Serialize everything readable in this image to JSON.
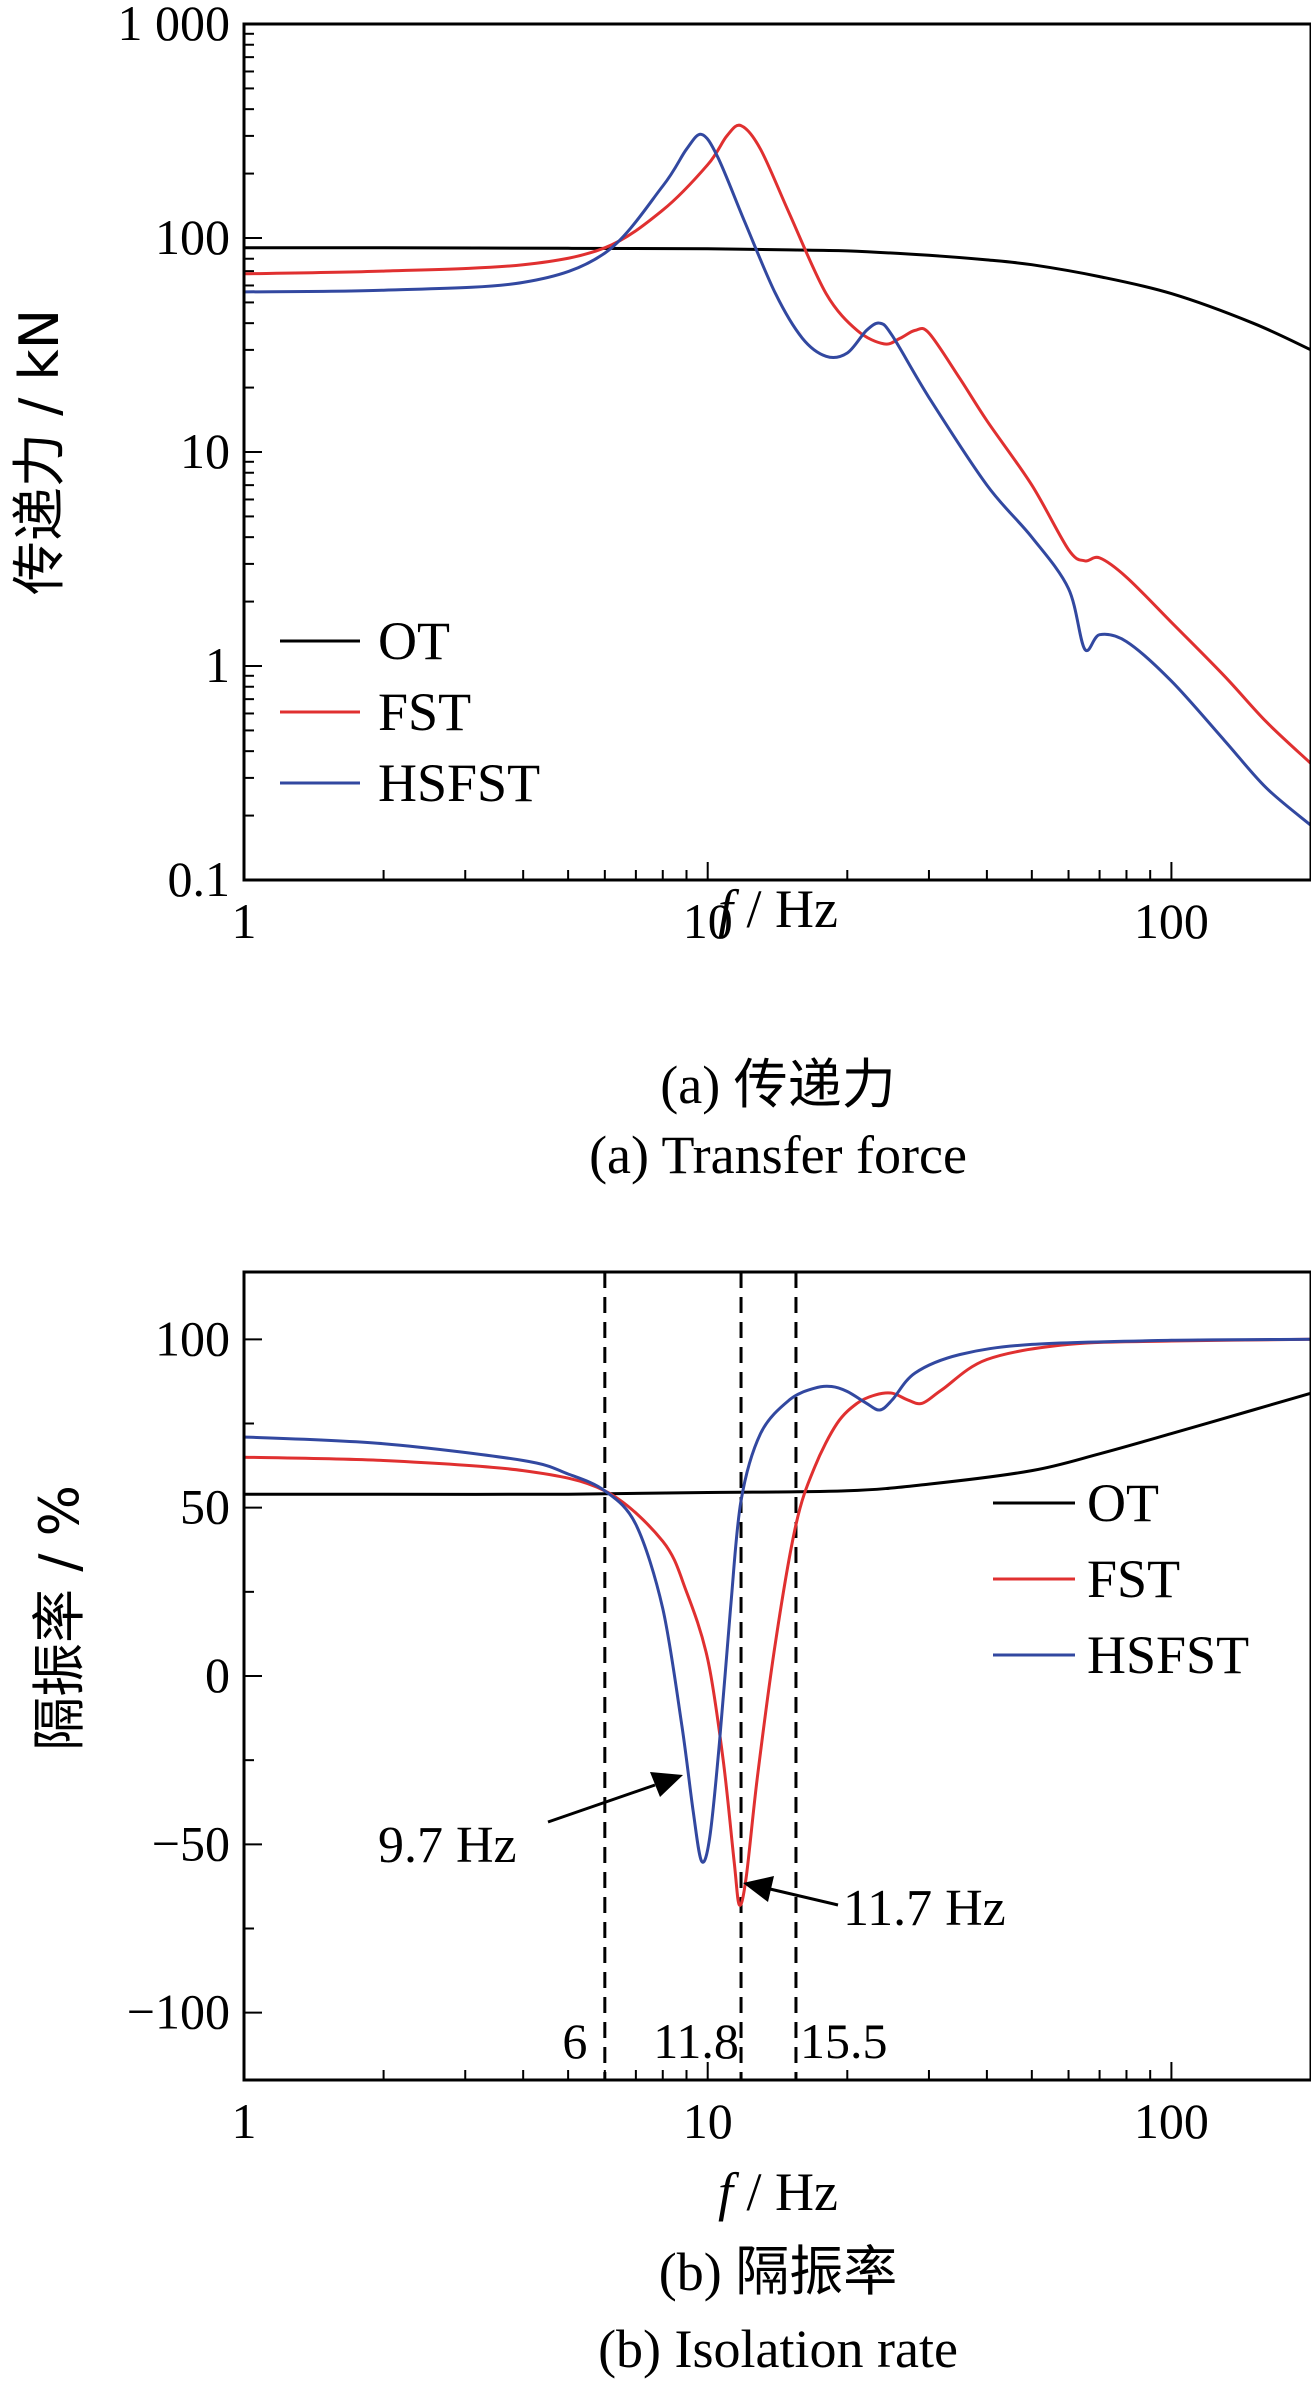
{
  "chart_data": [
    {
      "panel": "a",
      "type": "line",
      "x_scale": "log",
      "y_scale": "log",
      "xlim": [
        1,
        200
      ],
      "ylim": [
        0.1,
        1000
      ],
      "xlabel_italic": "f",
      "xlabel_rest": " / Hz",
      "ylabel": "传递力 / kN",
      "x_ticks": [
        {
          "value": 1,
          "label": "1"
        },
        {
          "value": 10,
          "label": "10"
        },
        {
          "value": 100,
          "label": "100"
        }
      ],
      "y_ticks": [
        {
          "value": 0.1,
          "label": "0.1"
        },
        {
          "value": 1,
          "label": "1"
        },
        {
          "value": 10,
          "label": "10"
        },
        {
          "value": 100,
          "label": "100"
        },
        {
          "value": 1000,
          "label": "1 000"
        }
      ],
      "caption_cn": "(a) 传递力",
      "caption_en": "(a) Transfer force",
      "legend": [
        "OT",
        "FST",
        "HSFST"
      ],
      "series": [
        {
          "name": "OT",
          "color": "#000000",
          "x": [
            1,
            2,
            5,
            10,
            15,
            20,
            30,
            40,
            50,
            70,
            100,
            150,
            200
          ],
          "y": [
            90,
            90,
            89.5,
            89,
            88,
            87,
            83,
            79,
            75,
            66,
            55,
            40,
            30
          ]
        },
        {
          "name": "FST",
          "color": "#e03030",
          "x": [
            1,
            2,
            4,
            6,
            8,
            10,
            11,
            11.8,
            13,
            15,
            18,
            21,
            24,
            26,
            28,
            30,
            35,
            40,
            50,
            60,
            65,
            70,
            80,
            100,
            130,
            160,
            200
          ],
          "y": [
            68,
            70,
            75,
            90,
            135,
            220,
            300,
            335,
            260,
            130,
            55,
            37,
            32,
            34,
            37,
            36,
            22,
            14,
            7,
            3.5,
            3.1,
            3.2,
            2.6,
            1.6,
            0.9,
            0.55,
            0.35
          ]
        },
        {
          "name": "HSFST",
          "color": "#3248a0",
          "x": [
            1,
            2,
            4,
            6,
            8,
            9,
            9.7,
            10.5,
            12,
            14,
            16,
            18,
            20,
            22,
            23.5,
            25,
            30,
            40,
            50,
            60,
            65,
            70,
            80,
            100,
            130,
            160,
            200
          ],
          "y": [
            56,
            57,
            62,
            85,
            175,
            260,
            305,
            240,
            120,
            55,
            34,
            28,
            29,
            37,
            40,
            35,
            18,
            7,
            4,
            2.3,
            1.2,
            1.4,
            1.3,
            0.85,
            0.45,
            0.27,
            0.18
          ]
        }
      ]
    },
    {
      "panel": "b",
      "type": "line",
      "x_scale": "log",
      "y_scale": "linear",
      "xlim": [
        1,
        200
      ],
      "ylim": [
        -120,
        120
      ],
      "xlabel_italic": "f",
      "xlabel_rest": " / Hz",
      "ylabel": "隔振率 / %",
      "x_ticks": [
        {
          "value": 1,
          "label": "1"
        },
        {
          "value": 10,
          "label": "10"
        },
        {
          "value": 100,
          "label": "100"
        }
      ],
      "y_ticks": [
        {
          "value": -100,
          "label": "−100"
        },
        {
          "value": -50,
          "label": "−50"
        },
        {
          "value": 0,
          "label": "0"
        },
        {
          "value": 50,
          "label": "50"
        },
        {
          "value": 100,
          "label": "100"
        }
      ],
      "caption_cn": "(b) 隔振率",
      "caption_en": "(b) Isolation rate",
      "legend": [
        "OT",
        "FST",
        "HSFST"
      ],
      "vlines": [
        {
          "x": 6,
          "label": "6"
        },
        {
          "x": 11.8,
          "label": "11.8"
        },
        {
          "x": 15.5,
          "label": "15.5"
        }
      ],
      "annotations": [
        {
          "text": "9.7 Hz",
          "x": 9.7
        },
        {
          "text": "11.7 Hz",
          "x": 11.7
        }
      ],
      "series": [
        {
          "name": "OT",
          "color": "#000000",
          "x": [
            1,
            2,
            5,
            10,
            20,
            30,
            50,
            70,
            100,
            150,
            200
          ],
          "y": [
            54,
            54,
            54,
            54.5,
            55,
            57,
            61,
            66,
            72,
            79,
            84
          ]
        },
        {
          "name": "FST",
          "color": "#e03030",
          "x": [
            1,
            2,
            4,
            6,
            8,
            9,
            10,
            10.8,
            11.4,
            11.7,
            12.1,
            12.8,
            14,
            15.5,
            17,
            19,
            21,
            23,
            25,
            27,
            29,
            32,
            40,
            60,
            100,
            200
          ],
          "y": [
            65,
            64,
            61,
            55,
            40,
            25,
            5,
            -25,
            -55,
            -68,
            -60,
            -30,
            10,
            45,
            62,
            75,
            81,
            83.5,
            84,
            82,
            81,
            85,
            94,
            98.5,
            99.5,
            100
          ]
        },
        {
          "name": "HSFST",
          "color": "#3248a0",
          "x": [
            1,
            2,
            4,
            5,
            6,
            7,
            8,
            8.8,
            9.3,
            9.7,
            10.1,
            10.6,
            11.2,
            11.8,
            13,
            15,
            17,
            18.5,
            20,
            22,
            23.5,
            25,
            28,
            35,
            50,
            100,
            200
          ],
          "y": [
            71,
            69,
            64,
            60,
            55,
            45,
            20,
            -15,
            -40,
            -55,
            -48,
            -20,
            20,
            52,
            72,
            82,
            85.5,
            86,
            84.5,
            81,
            79,
            82,
            90,
            95.5,
            98.5,
            99.7,
            100
          ]
        }
      ]
    }
  ]
}
